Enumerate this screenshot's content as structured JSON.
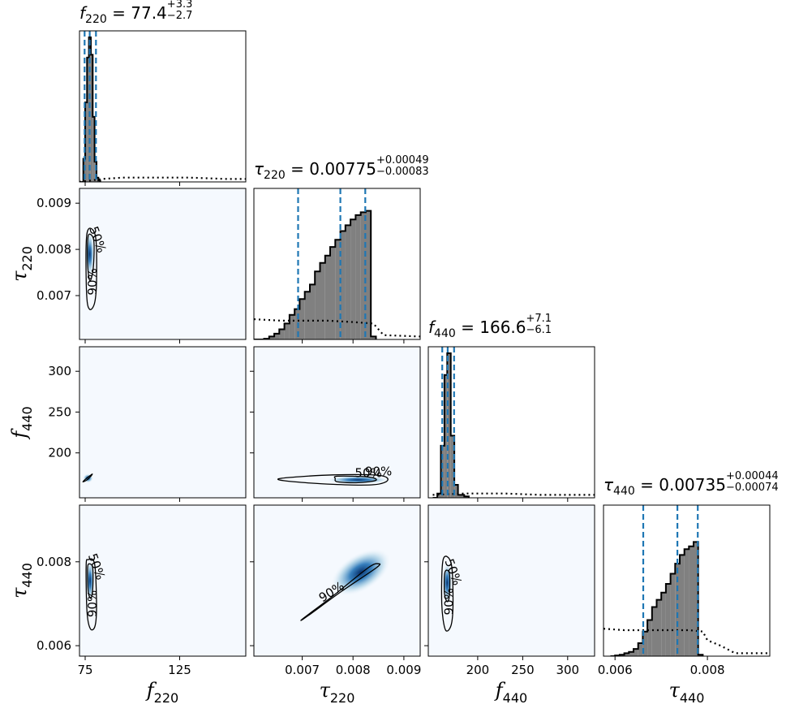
{
  "titles": [
    {
      "sym": "f",
      "sub": "220",
      "eq": " = 77.4",
      "plus": "+3.3",
      "minus": "−2.7"
    },
    {
      "sym": "τ",
      "sub": "220",
      "eq": " = 0.00775",
      "plus": "+0.00049",
      "minus": "−0.00083"
    },
    {
      "sym": "f",
      "sub": "440",
      "eq": " = 166.6",
      "plus": "+7.1",
      "minus": "−6.1"
    },
    {
      "sym": "τ",
      "sub": "440",
      "eq": " = 0.00735",
      "plus": "+0.00044",
      "minus": "−0.00074"
    }
  ],
  "chart_data": {
    "type": "corner",
    "parameters": [
      {
        "name": "f220",
        "label": "f",
        "sub": "220",
        "range": [
          72,
          160
        ],
        "ticks": [
          75,
          125
        ],
        "tick_labels": [
          "75",
          "125"
        ],
        "median": 77.4,
        "quantiles": [
          74.7,
          77.4,
          80.7
        ]
      },
      {
        "name": "tau220",
        "label": "τ",
        "sub": "220",
        "range": [
          0.00605,
          0.00932
        ],
        "ticks": [
          0.007,
          0.008,
          0.009
        ],
        "tick_labels": [
          "0.007",
          "0.008",
          "0.009"
        ],
        "median": 0.00775,
        "quantiles": [
          0.00692,
          0.00775,
          0.00824
        ]
      },
      {
        "name": "f440",
        "label": "f",
        "sub": "440",
        "range": [
          145,
          330
        ],
        "ticks": [
          200,
          250,
          300
        ],
        "tick_labels": [
          "200",
          "250",
          "300"
        ],
        "median": 166.6,
        "quantiles": [
          160.5,
          166.6,
          173.7
        ]
      },
      {
        "name": "tau440",
        "label": "τ",
        "sub": "440",
        "range": [
          0.00575,
          0.00935
        ],
        "ticks": [
          0.006,
          0.008
        ],
        "tick_labels": [
          "0.006",
          "0.008"
        ],
        "median": 0.00735,
        "quantiles": [
          0.00661,
          0.00735,
          0.00779
        ]
      }
    ],
    "histograms": [
      {
        "bins": [
          [
            73.0,
            0
          ],
          [
            74.0,
            0.16
          ],
          [
            75.0,
            0.55
          ],
          [
            76.0,
            0.86
          ],
          [
            77.0,
            1.0
          ],
          [
            78.0,
            0.88
          ],
          [
            79.0,
            0.45
          ],
          [
            80.0,
            0.14
          ],
          [
            81.0,
            0.03
          ],
          [
            82.0,
            0.01
          ],
          [
            83.0,
            0
          ]
        ],
        "prior": [
          [
            72,
            0
          ],
          [
            84,
            0.02
          ],
          [
            95,
            0.03
          ],
          [
            110,
            0.03
          ],
          [
            130,
            0.03
          ],
          [
            150,
            0.02
          ],
          [
            160,
            0.02
          ]
        ]
      },
      {
        "bins": [
          [
            0.00605,
            0
          ],
          [
            0.00615,
            0
          ],
          [
            0.00625,
            0.005
          ],
          [
            0.00635,
            0.02
          ],
          [
            0.00645,
            0.04
          ],
          [
            0.00655,
            0.07
          ],
          [
            0.00665,
            0.11
          ],
          [
            0.00675,
            0.17
          ],
          [
            0.00685,
            0.21
          ],
          [
            0.00695,
            0.28
          ],
          [
            0.00705,
            0.33
          ],
          [
            0.00715,
            0.38
          ],
          [
            0.00725,
            0.47
          ],
          [
            0.00735,
            0.53
          ],
          [
            0.00745,
            0.58
          ],
          [
            0.00755,
            0.64
          ],
          [
            0.00765,
            0.69
          ],
          [
            0.00775,
            0.75
          ],
          [
            0.00785,
            0.79
          ],
          [
            0.00795,
            0.83
          ],
          [
            0.00805,
            0.86
          ],
          [
            0.00815,
            0.88
          ],
          [
            0.00825,
            0.89
          ],
          [
            0.00835,
            0.02
          ],
          [
            0.00845,
            0
          ]
        ],
        "prior": [
          [
            0.00605,
            0.14
          ],
          [
            0.0066,
            0.13
          ],
          [
            0.007,
            0.13
          ],
          [
            0.0075,
            0.13
          ],
          [
            0.008,
            0.12
          ],
          [
            0.0084,
            0.11
          ],
          [
            0.0086,
            0.03
          ],
          [
            0.00932,
            0.02
          ]
        ]
      },
      {
        "bins": [
          [
            150,
            0
          ],
          [
            155,
            0.03
          ],
          [
            159,
            0.36
          ],
          [
            163,
            0.85
          ],
          [
            166,
            1.0
          ],
          [
            170,
            0.43
          ],
          [
            174,
            0.09
          ],
          [
            178,
            0.02
          ],
          [
            185,
            0.01
          ],
          [
            190,
            0
          ]
        ],
        "prior": [
          [
            150,
            0.02
          ],
          [
            185,
            0.03
          ],
          [
            230,
            0.03
          ],
          [
            270,
            0.02
          ],
          [
            330,
            0.02
          ]
        ]
      },
      {
        "bins": [
          [
            0.0059,
            0
          ],
          [
            0.006,
            0.005
          ],
          [
            0.0061,
            0.01
          ],
          [
            0.0062,
            0.02
          ],
          [
            0.0063,
            0.03
          ],
          [
            0.0064,
            0.05
          ],
          [
            0.0065,
            0.09
          ],
          [
            0.0066,
            0.17
          ],
          [
            0.0067,
            0.25
          ],
          [
            0.0068,
            0.34
          ],
          [
            0.0069,
            0.39
          ],
          [
            0.007,
            0.44
          ],
          [
            0.0071,
            0.5
          ],
          [
            0.0072,
            0.57
          ],
          [
            0.0073,
            0.64
          ],
          [
            0.0074,
            0.7
          ],
          [
            0.0075,
            0.74
          ],
          [
            0.0076,
            0.76
          ],
          [
            0.0077,
            0.79
          ],
          [
            0.0078,
            0.01
          ],
          [
            0.0079,
            0
          ]
        ],
        "prior": [
          [
            0.00575,
            0.19
          ],
          [
            0.0062,
            0.18
          ],
          [
            0.007,
            0.18
          ],
          [
            0.0076,
            0.18
          ],
          [
            0.0079,
            0.17
          ],
          [
            0.008,
            0.11
          ],
          [
            0.0083,
            0.07
          ],
          [
            0.0086,
            0.02
          ],
          [
            0.00935,
            0.02
          ]
        ]
      }
    ],
    "contours": [
      {
        "x": "f220",
        "y": "tau220",
        "labels": [
          "50%",
          "90%"
        ],
        "c50": [
          [
            77.2,
            0.00833
          ],
          [
            79.6,
            0.00818
          ],
          [
            79.3,
            0.0076
          ],
          [
            77.6,
            0.00732
          ],
          [
            76.4,
            0.0076
          ],
          [
            76.3,
            0.00815
          ]
        ],
        "c90": [
          [
            77.0,
            0.00845
          ],
          [
            80.6,
            0.00825
          ],
          [
            81.0,
            0.0073
          ],
          [
            80.0,
            0.00684
          ],
          [
            77.4,
            0.0067
          ],
          [
            75.8,
            0.007
          ],
          [
            75.5,
            0.0081
          ]
        ]
      },
      {
        "x": "f220",
        "y": "f440",
        "labels": [],
        "c50": [],
        "c90": [
          [
            73.8,
            164.5
          ],
          [
            75.5,
            168.5
          ],
          [
            77.8,
            172.5
          ],
          [
            78.8,
            174.0
          ],
          [
            78.0,
            171.5
          ],
          [
            76.0,
            167.0
          ]
        ]
      },
      {
        "x": "tau220",
        "y": "f440",
        "labels": [
          "50%",
          "90%"
        ],
        "c50": [
          [
            0.0077,
            171.5
          ],
          [
            0.0083,
            170.5
          ],
          [
            0.00845,
            166.5
          ],
          [
            0.0081,
            163.5
          ],
          [
            0.0077,
            164.5
          ],
          [
            0.00765,
            168.5
          ]
        ],
        "c90": [
          [
            0.0066,
            169.0
          ],
          [
            0.0076,
            173.0
          ],
          [
            0.0085,
            172.5
          ],
          [
            0.00868,
            166.5
          ],
          [
            0.0084,
            161.0
          ],
          [
            0.0076,
            161.5
          ],
          [
            0.0067,
            165.5
          ]
        ]
      },
      {
        "x": "f220",
        "y": "tau440",
        "labels": [
          "50%",
          "90%"
        ],
        "c50": [
          [
            77.2,
            0.00795
          ],
          [
            79.0,
            0.00785
          ],
          [
            79.0,
            0.00735
          ],
          [
            78.0,
            0.00713
          ],
          [
            76.6,
            0.0073
          ],
          [
            76.3,
            0.00785
          ]
        ],
        "c90": [
          [
            76.6,
            0.00805
          ],
          [
            80.0,
            0.00795
          ],
          [
            81.0,
            0.007
          ],
          [
            80.3,
            0.00648
          ],
          [
            77.8,
            0.0064
          ],
          [
            76.0,
            0.0068
          ],
          [
            75.5,
            0.0079
          ]
        ]
      },
      {
        "x": "tau220",
        "y": "tau440",
        "labels": [
          "90%"
        ],
        "c50": [],
        "c90": [
          [
            0.00702,
            0.00665
          ],
          [
            0.00762,
            0.0072
          ],
          [
            0.0083,
            0.00786
          ],
          [
            0.0085,
            0.00795
          ],
          [
            0.00845,
            0.00785
          ],
          [
            0.00778,
            0.0073
          ],
          [
            0.0071,
            0.0067
          ]
        ]
      },
      {
        "x": "f440",
        "y": "tau440",
        "labels": [
          "50%",
          "90%"
        ],
        "c50": [
          [
            163.5,
            0.00775
          ],
          [
            168.5,
            0.00772
          ],
          [
            168.5,
            0.0072
          ],
          [
            166.0,
            0.00705
          ],
          [
            163.0,
            0.00725
          ]
        ],
        "c90": [
          [
            161.5,
            0.00805
          ],
          [
            170.5,
            0.00795
          ],
          [
            172.5,
            0.00705
          ],
          [
            170.5,
            0.0065
          ],
          [
            164.0,
            0.00638
          ],
          [
            160.0,
            0.007
          ]
        ]
      }
    ],
    "density": [
      {
        "x": "f220",
        "y": "tau220",
        "cx": 77.4,
        "cy": 0.0079,
        "sx": 1.1,
        "sy": 0.00022
      },
      {
        "x": "f220",
        "y": "f440",
        "cx": 76.5,
        "cy": 169.0,
        "sx": 1.2,
        "sy": 2.5
      },
      {
        "x": "tau220",
        "y": "f440",
        "cx": 0.0081,
        "cy": 167.0,
        "sx": 0.00028,
        "sy": 2.2
      },
      {
        "x": "f220",
        "y": "tau440",
        "cx": 77.6,
        "cy": 0.00755,
        "sx": 1.0,
        "sy": 0.00022
      },
      {
        "x": "tau220",
        "y": "tau440",
        "cx": 0.00815,
        "cy": 0.00775,
        "sx": 0.0003,
        "sy": 0.0002
      },
      {
        "x": "f440",
        "y": "tau440",
        "cx": 166.0,
        "cy": 0.0075,
        "sx": 2.4,
        "sy": 0.00022
      }
    ],
    "colors": {
      "hist_fill": "#808080",
      "quantile_line": "#1f77b4",
      "density_low": "#f5f9fe",
      "density_high": "#08306b",
      "contour": "#000000"
    }
  }
}
